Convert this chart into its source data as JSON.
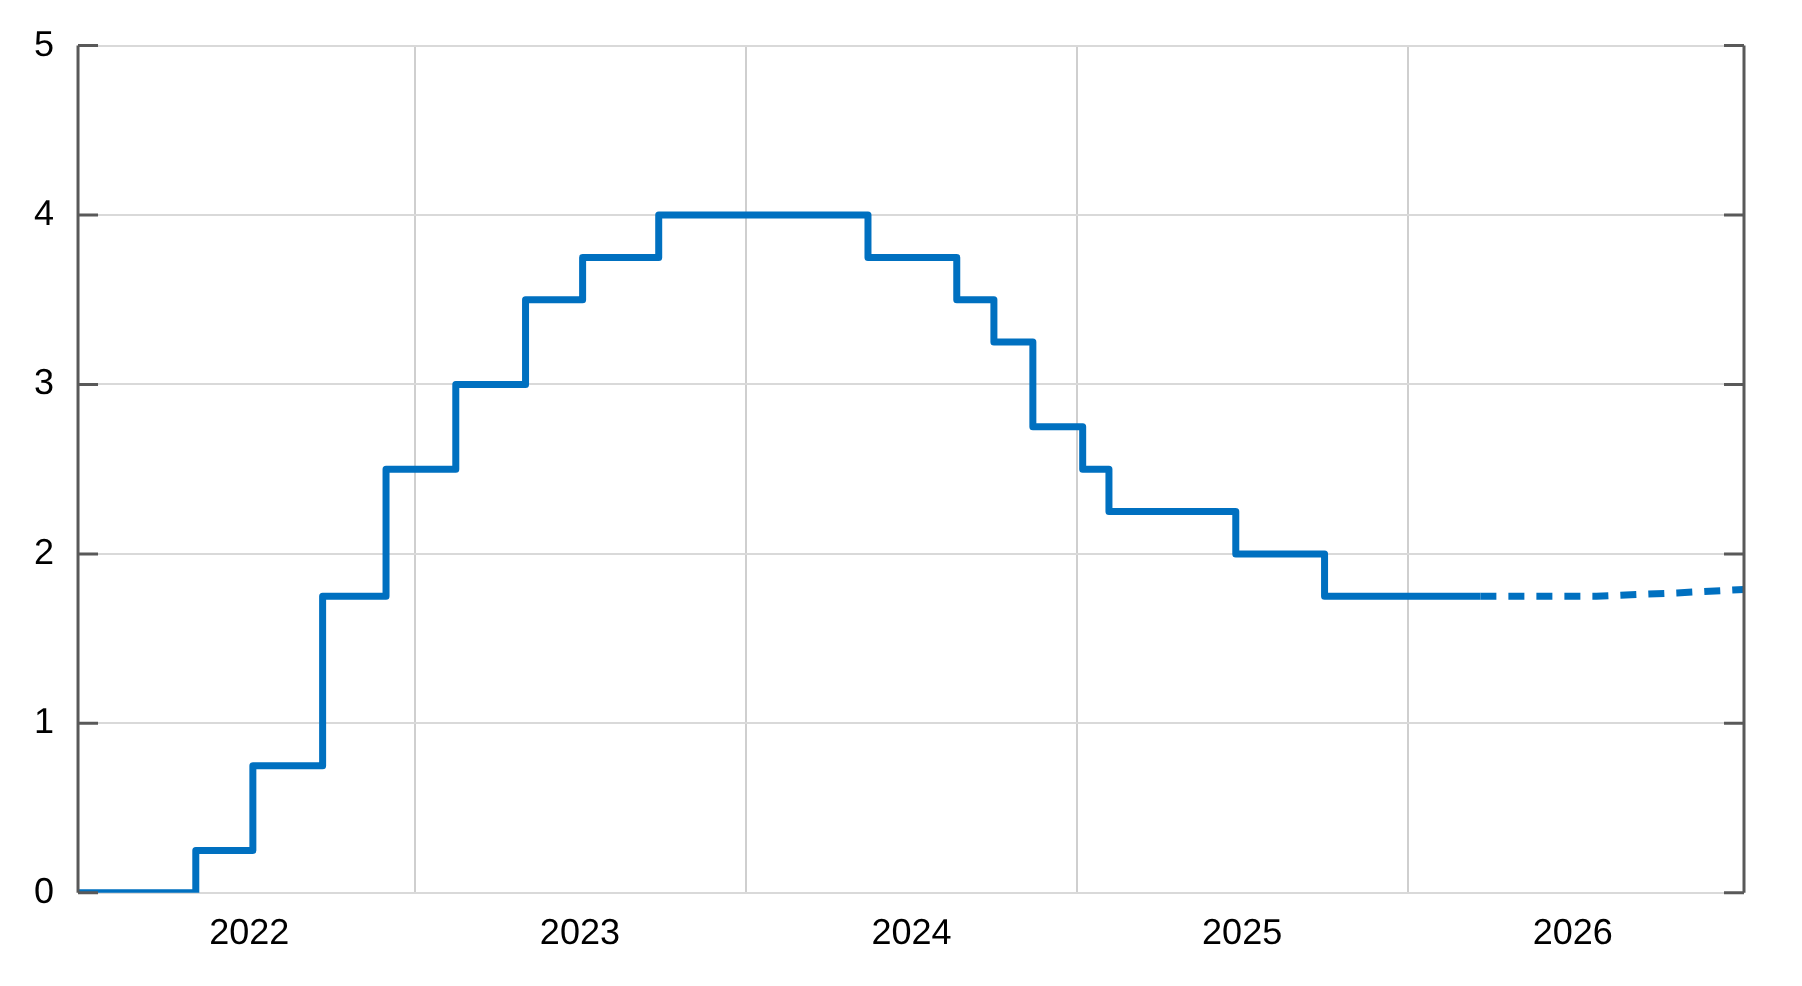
{
  "chart_data": {
    "type": "step",
    "x": [
      "2021-12-25",
      "2022-05-04",
      "2022-07-06",
      "2022-09-21",
      "2022-11-30",
      "2023-02-15",
      "2023-05-03",
      "2023-07-05",
      "2023-09-27",
      "2024-05-15",
      "2024-08-21",
      "2024-10-01",
      "2024-11-13",
      "2025-01-07",
      "2025-02-05",
      "2025-06-25",
      "2025-10-01",
      "2026-03-22"
    ],
    "series": [
      {
        "color": "#0070c0",
        "values": [
          0,
          0.25,
          0.75,
          1.75,
          2.5,
          3.0,
          3.5,
          3.75,
          4.0,
          3.75,
          3.5,
          3.25,
          2.75,
          2.5,
          2.25,
          2.0,
          1.75,
          1.75
        ]
      },
      {
        "type": "line",
        "line_style": "dashed",
        "color": "#0070c0",
        "x": [
          "2026-03-22",
          "2026-07-28",
          "2026-10-25",
          "2027-01-07"
        ],
        "values": [
          1.75,
          1.75,
          1.77,
          1.79
        ]
      }
    ],
    "xlim": [
      "2021-12-25",
      "2027-01-07"
    ],
    "xticks": [
      {
        "value": "2022-07-02",
        "label": "2022"
      },
      {
        "value": "2023-01-01",
        "label": null
      },
      {
        "value": "2023-07-02",
        "label": "2023"
      },
      {
        "value": "2024-01-01",
        "label": null
      },
      {
        "value": "2024-07-02",
        "label": "2024"
      },
      {
        "value": "2025-01-01",
        "label": null
      },
      {
        "value": "2025-07-02",
        "label": "2025"
      },
      {
        "value": "2026-01-01",
        "label": null
      },
      {
        "value": "2026-07-02",
        "label": "2026"
      }
    ],
    "ylim": [
      0,
      5
    ],
    "yticks": [
      0,
      1,
      2,
      3,
      4,
      5
    ],
    "grid": true,
    "legend": false,
    "marker": "none"
  }
}
